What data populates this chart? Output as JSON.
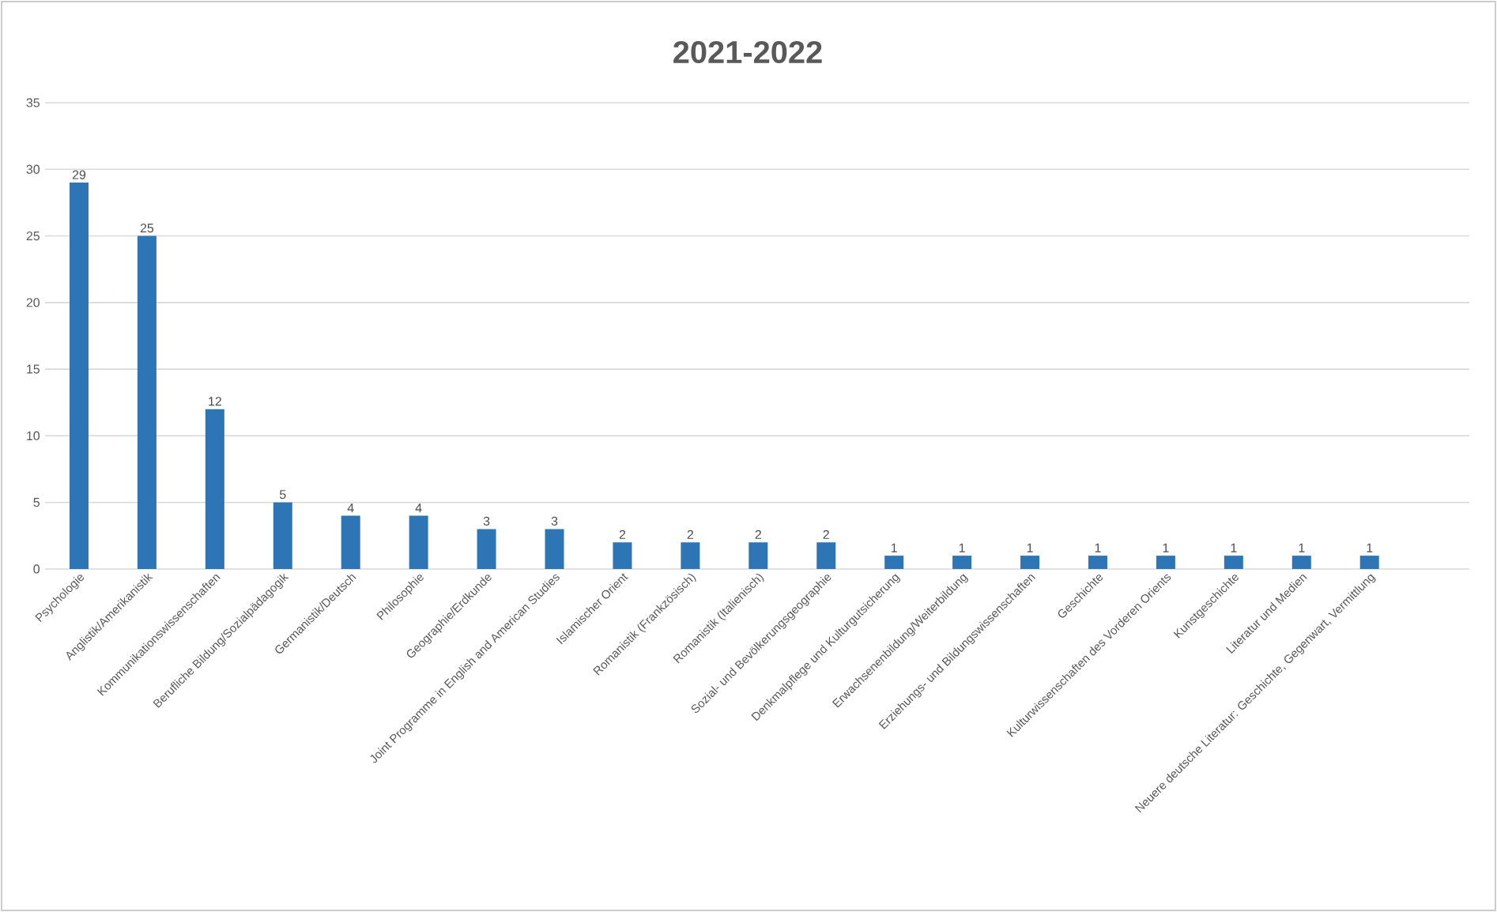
{
  "chart_data": {
    "type": "bar",
    "title": "2021-2022",
    "categories": [
      "Psychologie",
      "Anglistik/Amerikanistik",
      "Kommunikationswissenschaften",
      "Berufliche Bildung/Sozialpädagogik",
      "Germanistik/Deutsch",
      "Philosophie",
      "Geographie/Erdkunde",
      "Joint Programme in English and American Studies",
      "Islamischer Orient",
      "Romanistik (Frankzösisch)",
      "Romanistik (Italienisch)",
      "Sozial- und Bevölkerungsgeographie",
      "Denkmalpflege und Kulturgutsicherung",
      "Erwachsenenbildung/Weiterbildung",
      "Erziehungs- und Bildungswissenschaften",
      "Geschichte",
      "Kulturwissenschaften des Vorderen Orients",
      "Kunstgeschichte",
      "Literatur und Medien",
      "Neuere deutsche Literatur: Geschichte, Gegenwart, Vermittlung"
    ],
    "values": [
      29,
      25,
      12,
      5,
      4,
      4,
      3,
      3,
      2,
      2,
      2,
      2,
      1,
      1,
      1,
      1,
      1,
      1,
      1,
      1
    ],
    "color": "#2e75b6",
    "ylim": [
      0,
      35
    ],
    "yticks": [
      0,
      5,
      10,
      15,
      20,
      25,
      30,
      35
    ],
    "grid": "y",
    "data_labels": true
  }
}
